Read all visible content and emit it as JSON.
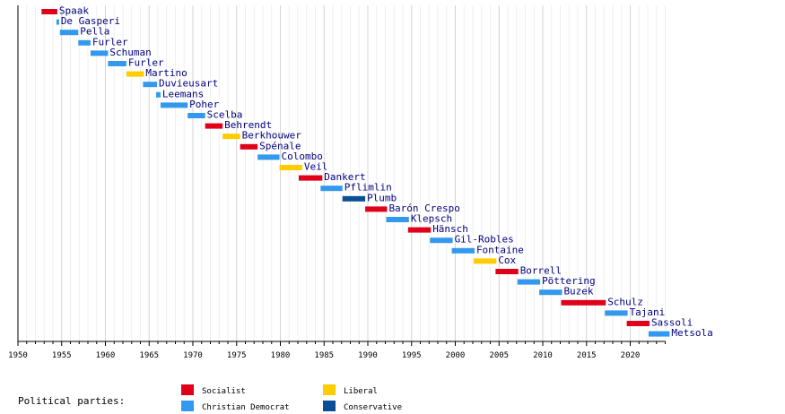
{
  "chart_data": {
    "type": "bar",
    "orientation": "horizontal-timeline",
    "x_range": [
      1950,
      2024
    ],
    "x_major_ticks": [
      1950,
      1955,
      1960,
      1965,
      1970,
      1975,
      1980,
      1985,
      1990,
      1995,
      2000,
      2005,
      2010,
      2015,
      2020
    ],
    "x_minor_tick_step": 1,
    "grid": true,
    "party_colors": {
      "Socialist": "#e0001a",
      "Christian Democrat": "#3399ee",
      "Liberal": "#ffcc00",
      "Conservative": "#0a4f96"
    },
    "presidents": [
      {
        "name": "Spaak",
        "start": 1952.7,
        "end": 1954.5,
        "party": "Socialist"
      },
      {
        "name": "De Gasperi",
        "start": 1954.4,
        "end": 1954.7,
        "party": "Christian Democrat"
      },
      {
        "name": "Pella",
        "start": 1954.8,
        "end": 1956.9,
        "party": "Christian Democrat"
      },
      {
        "name": "Furler",
        "start": 1956.9,
        "end": 1958.3,
        "party": "Christian Democrat"
      },
      {
        "name": "Schuman",
        "start": 1958.3,
        "end": 1960.3,
        "party": "Christian Democrat"
      },
      {
        "name": "Furler",
        "start": 1960.3,
        "end": 1962.4,
        "party": "Christian Democrat"
      },
      {
        "name": "Martino",
        "start": 1962.4,
        "end": 1964.4,
        "party": "Liberal"
      },
      {
        "name": "Duvieusart",
        "start": 1964.3,
        "end": 1965.9,
        "party": "Christian Democrat"
      },
      {
        "name": "Leemans",
        "start": 1965.8,
        "end": 1966.3,
        "party": "Christian Democrat"
      },
      {
        "name": "Poher",
        "start": 1966.3,
        "end": 1969.4,
        "party": "Christian Democrat"
      },
      {
        "name": "Scelba",
        "start": 1969.4,
        "end": 1971.4,
        "party": "Christian Democrat"
      },
      {
        "name": "Behrendt",
        "start": 1971.4,
        "end": 1973.4,
        "party": "Socialist"
      },
      {
        "name": "Berkhouwer",
        "start": 1973.4,
        "end": 1975.4,
        "party": "Liberal"
      },
      {
        "name": "Spénale",
        "start": 1975.4,
        "end": 1977.4,
        "party": "Socialist"
      },
      {
        "name": "Colombo",
        "start": 1977.4,
        "end": 1979.9,
        "party": "Christian Democrat"
      },
      {
        "name": "Veil",
        "start": 1979.9,
        "end": 1982.5,
        "party": "Liberal"
      },
      {
        "name": "Dankert",
        "start": 1982.1,
        "end": 1984.8,
        "party": "Socialist"
      },
      {
        "name": "Pflimlin",
        "start": 1984.6,
        "end": 1987.1,
        "party": "Christian Democrat"
      },
      {
        "name": "Plumb",
        "start": 1987.1,
        "end": 1989.7,
        "party": "Conservative"
      },
      {
        "name": "Barón Crespo",
        "start": 1989.7,
        "end": 1992.2,
        "party": "Socialist"
      },
      {
        "name": "Klepsch",
        "start": 1992.1,
        "end": 1994.7,
        "party": "Christian Democrat"
      },
      {
        "name": "Hänsch",
        "start": 1994.6,
        "end": 1997.2,
        "party": "Socialist"
      },
      {
        "name": "Gil-Robles",
        "start": 1997.1,
        "end": 1999.7,
        "party": "Christian Democrat"
      },
      {
        "name": "Fontaine",
        "start": 1999.6,
        "end": 2002.2,
        "party": "Christian Democrat"
      },
      {
        "name": "Cox",
        "start": 2002.1,
        "end": 2004.7,
        "party": "Liberal"
      },
      {
        "name": "Borrell",
        "start": 2004.6,
        "end": 2007.2,
        "party": "Socialist"
      },
      {
        "name": "Pöttering",
        "start": 2007.1,
        "end": 2009.7,
        "party": "Christian Democrat"
      },
      {
        "name": "Buzek",
        "start": 2009.6,
        "end": 2012.2,
        "party": "Christian Democrat"
      },
      {
        "name": "Schulz",
        "start": 2012.1,
        "end": 2017.2,
        "party": "Socialist"
      },
      {
        "name": "Tajani",
        "start": 2017.1,
        "end": 2019.7,
        "party": "Christian Democrat"
      },
      {
        "name": "Sassoli",
        "start": 2019.6,
        "end": 2022.2,
        "party": "Socialist"
      },
      {
        "name": "Metsola",
        "start": 2022.1,
        "end": 2024.5,
        "party": "Christian Democrat"
      }
    ]
  },
  "legend": {
    "title": "Political parties:",
    "items": [
      {
        "label": "Socialist",
        "party": "Socialist"
      },
      {
        "label": "Liberal",
        "party": "Liberal"
      },
      {
        "label": "Christian Democrat",
        "party": "Christian Democrat"
      },
      {
        "label": "Conservative",
        "party": "Conservative"
      }
    ]
  }
}
